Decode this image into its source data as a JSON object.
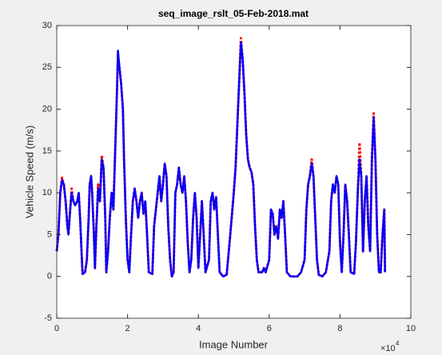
{
  "chart_data": {
    "type": "line",
    "title": "seq_image_rslt_05-Feb-2018.mat",
    "x_label": "Image Number",
    "y_label": "Vehicle Speed (m/s)",
    "x_multiplier": {
      "base": "×10",
      "exponent": "4"
    },
    "xlim": [
      0,
      10
    ],
    "xticks": [
      0,
      2,
      4,
      6,
      8,
      10
    ],
    "ylim": [
      -5,
      30
    ],
    "yticks": [
      -5,
      0,
      5,
      10,
      15,
      20,
      25,
      30
    ],
    "grid": false,
    "x": [
      0.0,
      0.05,
      0.1,
      0.15,
      0.2,
      0.25,
      0.3,
      0.33,
      0.38,
      0.42,
      0.47,
      0.52,
      0.58,
      0.62,
      0.66,
      0.7,
      0.73,
      0.8,
      0.85,
      0.9,
      0.93,
      0.97,
      1.0,
      1.05,
      1.08,
      1.12,
      1.17,
      1.22,
      1.27,
      1.32,
      1.37,
      1.4,
      1.45,
      1.5,
      1.55,
      1.6,
      1.65,
      1.7,
      1.73,
      1.77,
      1.82,
      1.87,
      1.9,
      1.95,
      2.0,
      2.05,
      2.1,
      2.15,
      2.2,
      2.25,
      2.3,
      2.35,
      2.4,
      2.45,
      2.5,
      2.55,
      2.6,
      2.7,
      2.75,
      2.8,
      2.85,
      2.9,
      2.95,
      3.0,
      3.05,
      3.1,
      3.15,
      3.2,
      3.25,
      3.3,
      3.35,
      3.4,
      3.45,
      3.5,
      3.55,
      3.6,
      3.65,
      3.7,
      3.75,
      3.8,
      3.85,
      3.9,
      3.95,
      4.0,
      4.05,
      4.1,
      4.15,
      4.2,
      4.3,
      4.35,
      4.4,
      4.45,
      4.5,
      4.55,
      4.6,
      4.7,
      4.8,
      4.9,
      5.0,
      5.05,
      5.1,
      5.15,
      5.2,
      5.25,
      5.3,
      5.35,
      5.4,
      5.45,
      5.5,
      5.55,
      5.6,
      5.65,
      5.7,
      5.8,
      5.85,
      5.9,
      6.0,
      6.05,
      6.1,
      6.15,
      6.2,
      6.25,
      6.3,
      6.35,
      6.4,
      6.45,
      6.5,
      6.6,
      6.7,
      6.8,
      6.9,
      7.0,
      7.05,
      7.1,
      7.15,
      7.2,
      7.25,
      7.3,
      7.35,
      7.4,
      7.5,
      7.6,
      7.7,
      7.75,
      7.8,
      7.85,
      7.9,
      7.95,
      8.0,
      8.05,
      8.1,
      8.15,
      8.2,
      8.25,
      8.3,
      8.4,
      8.45,
      8.5,
      8.55,
      8.6,
      8.65,
      8.7,
      8.75,
      8.8,
      8.85,
      8.9,
      8.95,
      9.0,
      9.05,
      9.1,
      9.15,
      9.2,
      9.25,
      9.27
    ],
    "series": [
      {
        "color": "#ff0000",
        "values": [
          3,
          5.5,
          10,
          11.8,
          11,
          9,
          6,
          5,
          8,
          10.5,
          9,
          8.5,
          9,
          10,
          7,
          3,
          0.3,
          0.5,
          2,
          7,
          11,
          12,
          10,
          5,
          1,
          6,
          11,
          9,
          14.5,
          13,
          7,
          0.5,
          3,
          7,
          10,
          8,
          15,
          22,
          26.5,
          25,
          23,
          20,
          14,
          7,
          2,
          0.5,
          5,
          9,
          10.5,
          9,
          7,
          9,
          10,
          7.5,
          9,
          5,
          0.5,
          0.3,
          6,
          8,
          10,
          12,
          9,
          11,
          13.5,
          12,
          6,
          2,
          0,
          0.5,
          10,
          11,
          13,
          11,
          10,
          12,
          9,
          4,
          0.5,
          2,
          7,
          10,
          7,
          1,
          5,
          9,
          5,
          0.5,
          2,
          9,
          10,
          8,
          9.5,
          5,
          0.5,
          0,
          0.2,
          5,
          10,
          13,
          18,
          23,
          28.5,
          26,
          22,
          17,
          14,
          13,
          12.5,
          11,
          6,
          2,
          0.5,
          0.5,
          1,
          0.5,
          2,
          8,
          7.5,
          5,
          6,
          4.5,
          8,
          7,
          9,
          5,
          0.5,
          0,
          0,
          0,
          0.5,
          2,
          8,
          11,
          12,
          14,
          12,
          7,
          2,
          0.2,
          0,
          0.5,
          3,
          9,
          11,
          10,
          12,
          11,
          4,
          0.5,
          5,
          11,
          9,
          5,
          0.5,
          0.3,
          4,
          10,
          16,
          12,
          3,
          9,
          12,
          6,
          3,
          14,
          19.5,
          14,
          5,
          0.5,
          0.5,
          5,
          8,
          0.5
        ]
      },
      {
        "color": "#0000ff",
        "values": [
          3,
          5,
          10,
          11.5,
          11,
          9,
          6,
          5,
          8,
          10,
          9,
          8.5,
          9,
          10,
          7,
          3,
          0.3,
          0.5,
          2,
          7,
          11,
          12,
          10,
          5,
          1,
          6,
          10.5,
          9,
          14,
          13,
          7,
          0.5,
          3,
          7,
          10,
          8,
          15,
          22,
          27,
          25,
          23,
          20,
          14,
          7,
          2,
          0.5,
          5,
          9,
          10.5,
          9,
          7,
          9,
          10,
          7.5,
          9,
          5,
          0.5,
          0.3,
          6,
          8,
          10,
          12,
          9,
          11,
          13.5,
          12,
          6,
          2,
          0,
          0.5,
          10,
          11,
          13,
          11,
          10,
          12,
          9,
          4,
          0.5,
          2,
          7,
          10,
          7,
          1,
          5,
          9,
          5,
          0.5,
          2,
          9,
          10,
          8,
          9.5,
          5,
          0.5,
          0,
          0.2,
          5,
          10,
          13,
          18,
          23,
          28,
          26,
          22,
          17,
          14,
          13,
          12.5,
          11,
          6,
          2,
          0.5,
          0.5,
          1,
          0.5,
          2,
          8,
          7.5,
          5,
          6,
          4.5,
          8,
          7,
          9,
          5,
          0.5,
          0,
          0,
          0,
          0.5,
          2,
          8,
          11,
          12,
          13.5,
          12,
          7,
          2,
          0.2,
          0,
          0.5,
          3,
          9,
          11,
          10,
          12,
          11,
          4,
          0.5,
          5,
          11,
          9,
          5,
          0.5,
          0.3,
          4,
          10,
          14,
          12,
          3,
          9,
          12,
          6,
          3,
          14,
          19,
          14,
          5,
          0.5,
          0.5,
          5,
          8,
          0.5
        ]
      }
    ]
  }
}
